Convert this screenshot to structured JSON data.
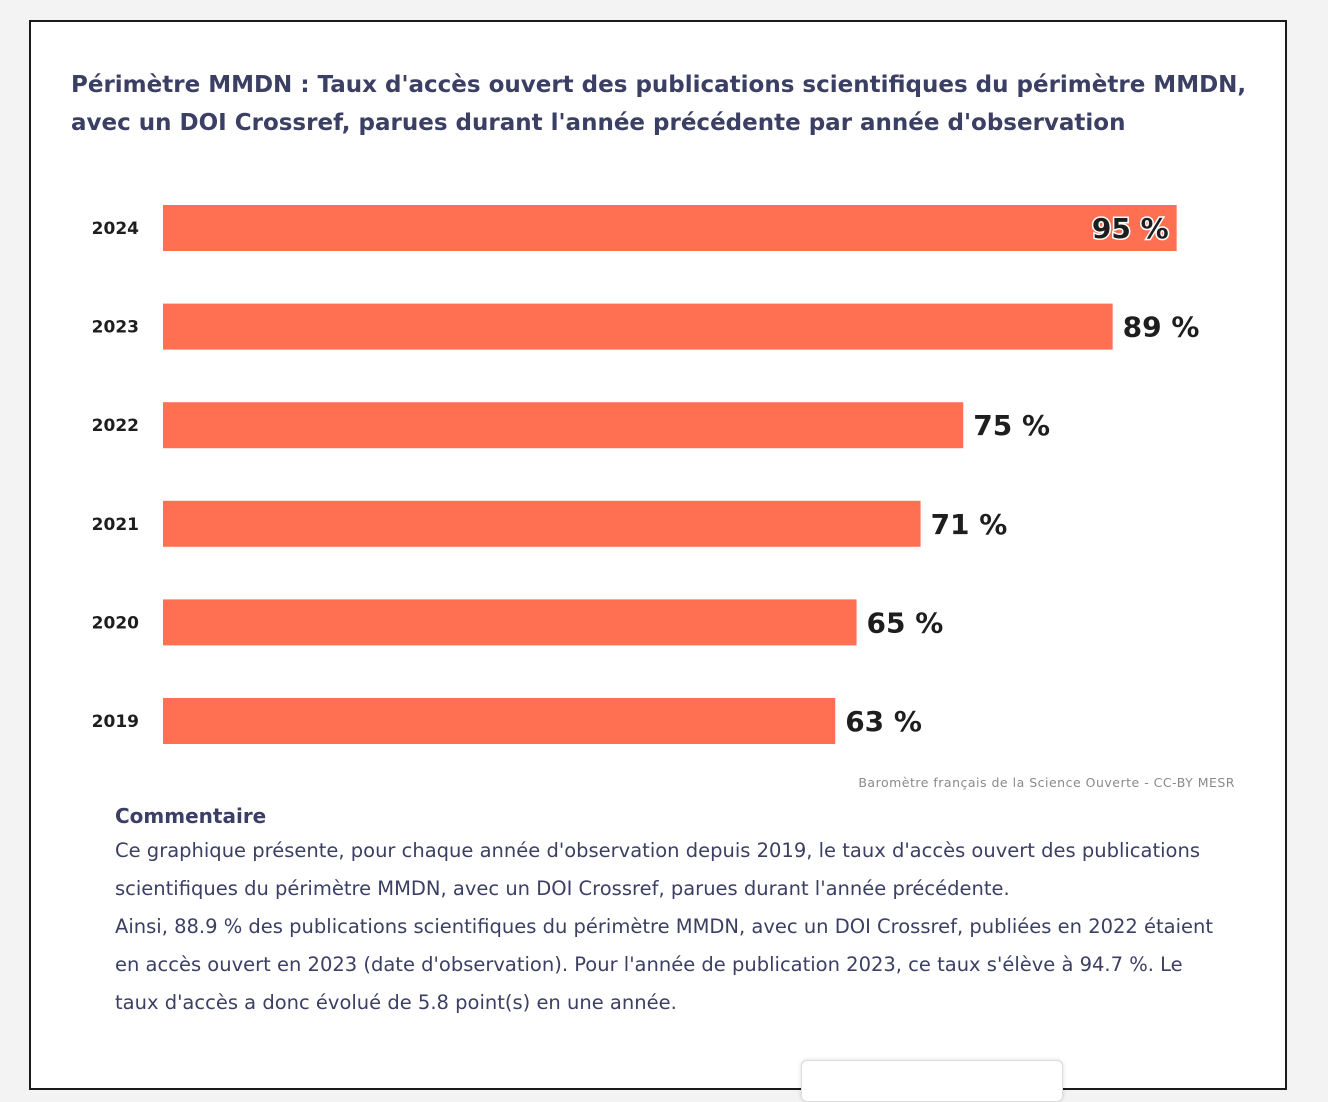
{
  "title": "Périmètre MMDN : Taux d'accès ouvert des publications scientifiques du périmètre MMDN, avec un DOI Crossref, parues durant l'année précédente par année d'observation",
  "chart_data": {
    "type": "bar",
    "orientation": "horizontal",
    "categories": [
      "2024",
      "2023",
      "2022",
      "2021",
      "2020",
      "2019"
    ],
    "values": [
      95,
      89,
      75,
      71,
      65,
      63
    ],
    "value_labels": [
      "95 %",
      "89 %",
      "75 %",
      "71 %",
      "65 %",
      "63 %"
    ],
    "xlim": [
      0,
      100
    ],
    "bar_color": "#ff7052",
    "title": "Périmètre MMDN : Taux d'accès ouvert des publications scientifiques du périmètre MMDN, avec un DOI Crossref, parues durant l'année précédente par année d'observation",
    "xlabel": "",
    "ylabel": "",
    "grid": false,
    "credits": "Baromètre français de la Science Ouverte - CC-BY MESR"
  },
  "comment": {
    "heading": "Commentaire",
    "paragraph1": "Ce graphique présente, pour chaque année d'observation depuis 2019, le taux d'accès ouvert des publications scientifiques du périmètre MMDN, avec un DOI Crossref, parues durant l'année précédente.",
    "paragraph2": "Ainsi, 88.9 % des publications scientifiques du périmètre MMDN, avec un DOI Crossref, publiées en 2022 étaient en accès ouvert en 2023 (date d'observation). Pour l'année de publication 2023, ce taux s'élève à 94.7 %. Le taux d'accès a donc évolué de 5.8 point(s) en une année."
  }
}
